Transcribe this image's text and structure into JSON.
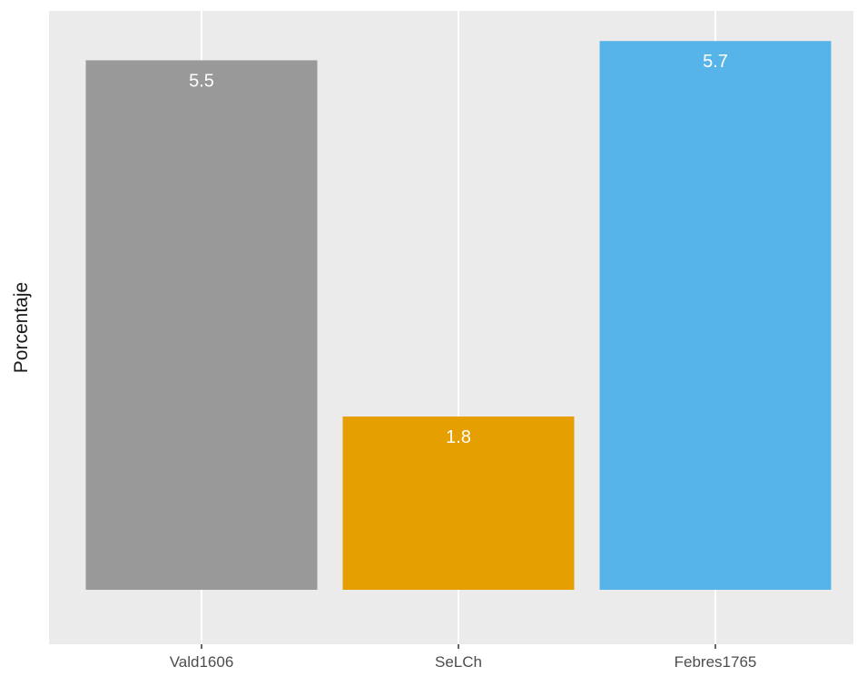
{
  "chart_data": {
    "type": "bar",
    "categories": [
      "Vald1606",
      "SeLCh",
      "Febres1765"
    ],
    "values": [
      5.5,
      1.8,
      5.7
    ],
    "value_labels": [
      "5.5",
      "1.8",
      "5.7"
    ],
    "colors": [
      "#999999",
      "#E69F00",
      "#56B4E9"
    ],
    "title": "",
    "xlabel": "",
    "ylabel": "Porcentaje",
    "ylim": [
      0,
      5.985
    ],
    "grid": true,
    "legend": "none",
    "panel_background": "#EBEBEB",
    "gridline_color": "#FFFFFF"
  }
}
